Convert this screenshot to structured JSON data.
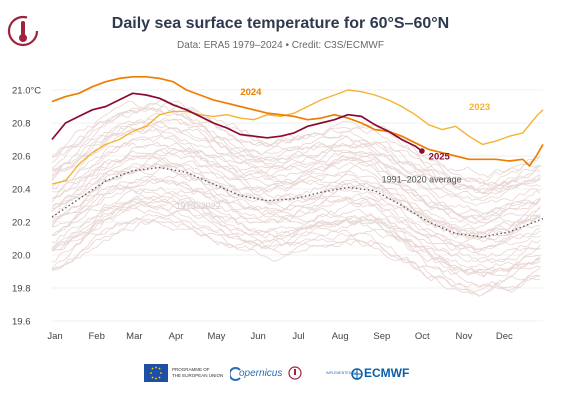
{
  "header": {
    "title": "Daily sea surface temperature for 60°S–60°N",
    "subtitle": "Data: ERA5 1979–2024 • Credit: C3S/ECMWF"
  },
  "footer": {
    "eu_text_1": "PROGRAMME OF",
    "eu_text_2": "THE EUROPEAN UNION",
    "copernicus": "opernicus",
    "implemented_by": "IMPLEMENTED BY",
    "ecmwf": "ECMWF"
  },
  "colors": {
    "y2024": "#ef7d00",
    "y2023": "#f5b335",
    "y2025": "#8b0a2f",
    "past_years": "#e8d6d2",
    "average": "#555555",
    "axis_text": "#444444",
    "grid": "#e6e6e6"
  },
  "chart_data": {
    "type": "line",
    "title": "Daily sea surface temperature for 60°S–60°N",
    "xlabel": "",
    "ylabel": "",
    "x_ticks": [
      "Jan",
      "Feb",
      "Mar",
      "Apr",
      "May",
      "Jun",
      "Jul",
      "Aug",
      "Sep",
      "Oct",
      "Nov",
      "Dec"
    ],
    "y_ticks": [
      "21.0°C",
      "20.8",
      "20.6",
      "20.4",
      "20.2",
      "20.0",
      "19.8",
      "19.6"
    ],
    "y_tick_values": [
      21.0,
      20.8,
      20.6,
      20.4,
      20.2,
      20.0,
      19.8,
      19.6
    ],
    "ylim": [
      19.6,
      21.15
    ],
    "xlim": [
      0,
      365
    ],
    "grid": true,
    "series": [
      {
        "name": "1991–2020 average",
        "style": "dotted",
        "x": [
          0,
          20,
          40,
          60,
          80,
          100,
          120,
          140,
          160,
          180,
          200,
          220,
          240,
          260,
          280,
          300,
          320,
          340,
          365
        ],
        "y": [
          20.23,
          20.34,
          20.45,
          20.51,
          20.53,
          20.5,
          20.43,
          20.36,
          20.33,
          20.34,
          20.38,
          20.41,
          20.39,
          20.3,
          20.2,
          20.13,
          20.11,
          20.14,
          20.22
        ]
      },
      {
        "name": "2023",
        "style": "solid",
        "x": [
          0,
          10,
          20,
          30,
          40,
          50,
          60,
          70,
          80,
          90,
          100,
          110,
          120,
          130,
          140,
          150,
          160,
          170,
          180,
          190,
          200,
          210,
          220,
          230,
          240,
          250,
          260,
          270,
          280,
          290,
          300,
          310,
          320,
          330,
          340,
          350,
          360,
          365
        ],
        "y": [
          20.43,
          20.45,
          20.55,
          20.62,
          20.67,
          20.7,
          20.75,
          20.78,
          20.85,
          20.87,
          20.87,
          20.85,
          20.84,
          20.85,
          20.83,
          20.82,
          20.85,
          20.84,
          20.86,
          20.9,
          20.94,
          20.97,
          21.0,
          20.99,
          20.97,
          20.94,
          20.9,
          20.85,
          20.79,
          20.76,
          20.78,
          20.72,
          20.67,
          20.69,
          20.72,
          20.74,
          20.84,
          20.88
        ]
      },
      {
        "name": "2024",
        "style": "solid",
        "x": [
          0,
          10,
          20,
          30,
          40,
          50,
          60,
          70,
          80,
          90,
          100,
          110,
          120,
          130,
          140,
          150,
          160,
          170,
          180,
          190,
          200,
          210,
          220,
          230,
          240,
          250,
          260,
          270,
          280,
          290,
          300,
          310,
          320,
          330,
          340,
          350,
          355,
          360,
          365
        ],
        "y": [
          20.93,
          20.96,
          20.98,
          21.02,
          21.05,
          21.07,
          21.08,
          21.08,
          21.07,
          21.05,
          21.0,
          20.97,
          20.94,
          20.92,
          20.9,
          20.88,
          20.86,
          20.85,
          20.84,
          20.82,
          20.83,
          20.85,
          20.83,
          20.8,
          20.76,
          20.75,
          20.72,
          20.68,
          20.64,
          20.62,
          20.6,
          20.58,
          20.58,
          20.58,
          20.57,
          20.58,
          20.54,
          20.6,
          20.67
        ]
      },
      {
        "name": "2025",
        "style": "solid",
        "x": [
          0,
          10,
          20,
          30,
          40,
          50,
          60,
          70,
          80,
          90,
          100,
          110,
          120,
          130,
          140,
          150,
          160,
          170,
          180,
          190,
          200,
          210,
          220,
          230,
          240,
          250,
          260,
          270,
          275
        ],
        "y": [
          20.7,
          20.8,
          20.84,
          20.88,
          20.9,
          20.94,
          20.98,
          20.97,
          20.95,
          20.91,
          20.88,
          20.84,
          20.8,
          20.77,
          20.73,
          20.72,
          20.71,
          20.72,
          20.74,
          20.78,
          20.8,
          20.82,
          20.85,
          20.84,
          20.79,
          20.75,
          20.7,
          20.66,
          20.63
        ]
      }
    ],
    "annotations": [
      {
        "text": "2024",
        "x": 140,
        "y": 20.97,
        "color": "#ef7d00"
      },
      {
        "text": "2023",
        "x": 310,
        "y": 20.88,
        "color": "#f5b335"
      },
      {
        "text": "2025",
        "x": 280,
        "y": 20.58,
        "color": "#8b0a2f"
      },
      {
        "text": "1991–2020 average",
        "x": 245,
        "y": 20.44,
        "color": "#555555"
      },
      {
        "text": "1979–2022",
        "x": 92,
        "y": 20.28,
        "color": "#cfcfcf"
      }
    ]
  }
}
